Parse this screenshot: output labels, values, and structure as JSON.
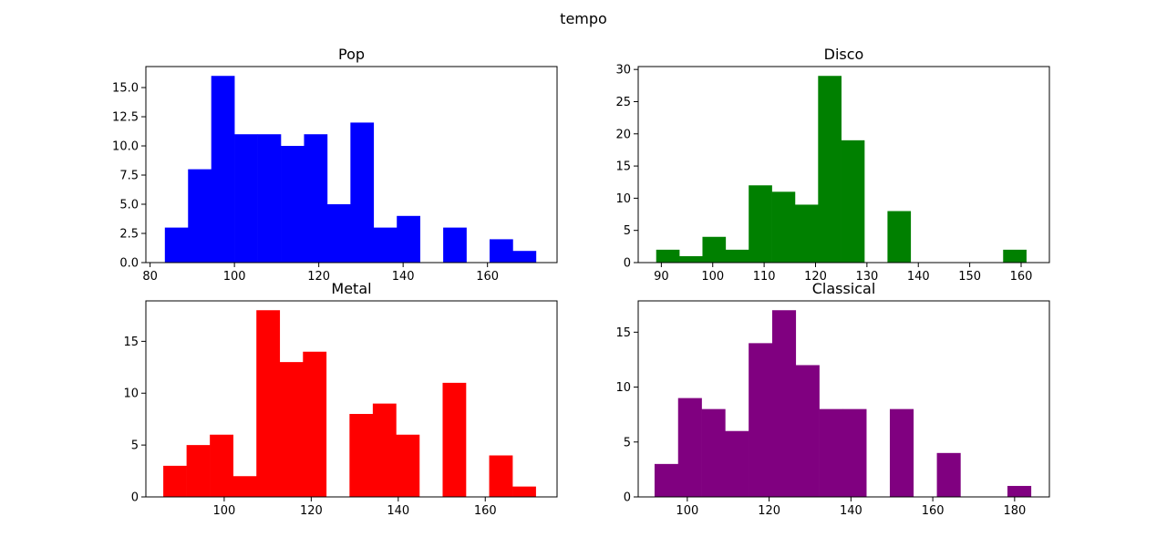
{
  "suptitle": "tempo",
  "chart_data": [
    {
      "type": "bar",
      "title": "Pop",
      "color": "#0000ff",
      "xlim": [
        79.0,
        176.5
      ],
      "ylim": [
        0,
        16.8
      ],
      "xticks": [
        80,
        100,
        120,
        140,
        160
      ],
      "yticks": [
        0.0,
        2.5,
        5.0,
        7.5,
        10.0,
        12.5,
        15.0
      ],
      "ytick_labels": [
        "0.0",
        "2.5",
        "5.0",
        "7.5",
        "10.0",
        "12.5",
        "15.0"
      ],
      "bin_start": 83.5,
      "bin_width": 5.5,
      "values": [
        3,
        8,
        16,
        11,
        11,
        10,
        11,
        5,
        12,
        3,
        4,
        0,
        3,
        0,
        2,
        1
      ]
    },
    {
      "type": "bar",
      "title": "Disco",
      "color": "#008000",
      "xlim": [
        85.5,
        165.5
      ],
      "ylim": [
        0,
        30.45
      ],
      "xticks": [
        90,
        100,
        110,
        120,
        130,
        140,
        150,
        160
      ],
      "yticks": [
        0,
        5,
        10,
        15,
        20,
        25,
        30
      ],
      "ytick_labels": [
        "0",
        "5",
        "10",
        "15",
        "20",
        "25",
        "30"
      ],
      "bin_start": 89.0,
      "bin_width": 4.5,
      "values": [
        2,
        1,
        4,
        2,
        12,
        11,
        9,
        29,
        19,
        0,
        8,
        0,
        0,
        0,
        0,
        2
      ]
    },
    {
      "type": "bar",
      "title": "Metal",
      "color": "#ff0000",
      "xlim": [
        82.0,
        176.5
      ],
      "ylim": [
        0,
        18.9
      ],
      "xticks": [
        100,
        120,
        140,
        160
      ],
      "yticks": [
        0,
        5,
        10,
        15
      ],
      "ytick_labels": [
        "0",
        "5",
        "10",
        "15"
      ],
      "bin_start": 86.0,
      "bin_width": 5.35,
      "values": [
        3,
        5,
        6,
        2,
        18,
        13,
        14,
        0,
        8,
        9,
        6,
        0,
        11,
        0,
        4,
        1
      ]
    },
    {
      "type": "bar",
      "title": "Classical",
      "color": "#800080",
      "xlim": [
        88.0,
        188.5
      ],
      "ylim": [
        0,
        17.85
      ],
      "xticks": [
        100,
        120,
        140,
        160,
        180
      ],
      "yticks": [
        0,
        5,
        10,
        15
      ],
      "ytick_labels": [
        "0",
        "5",
        "10",
        "15"
      ],
      "bin_start": 92.0,
      "bin_width": 5.75,
      "values": [
        3,
        9,
        8,
        6,
        14,
        17,
        12,
        8,
        8,
        0,
        8,
        0,
        4,
        0,
        0,
        1
      ]
    }
  ]
}
